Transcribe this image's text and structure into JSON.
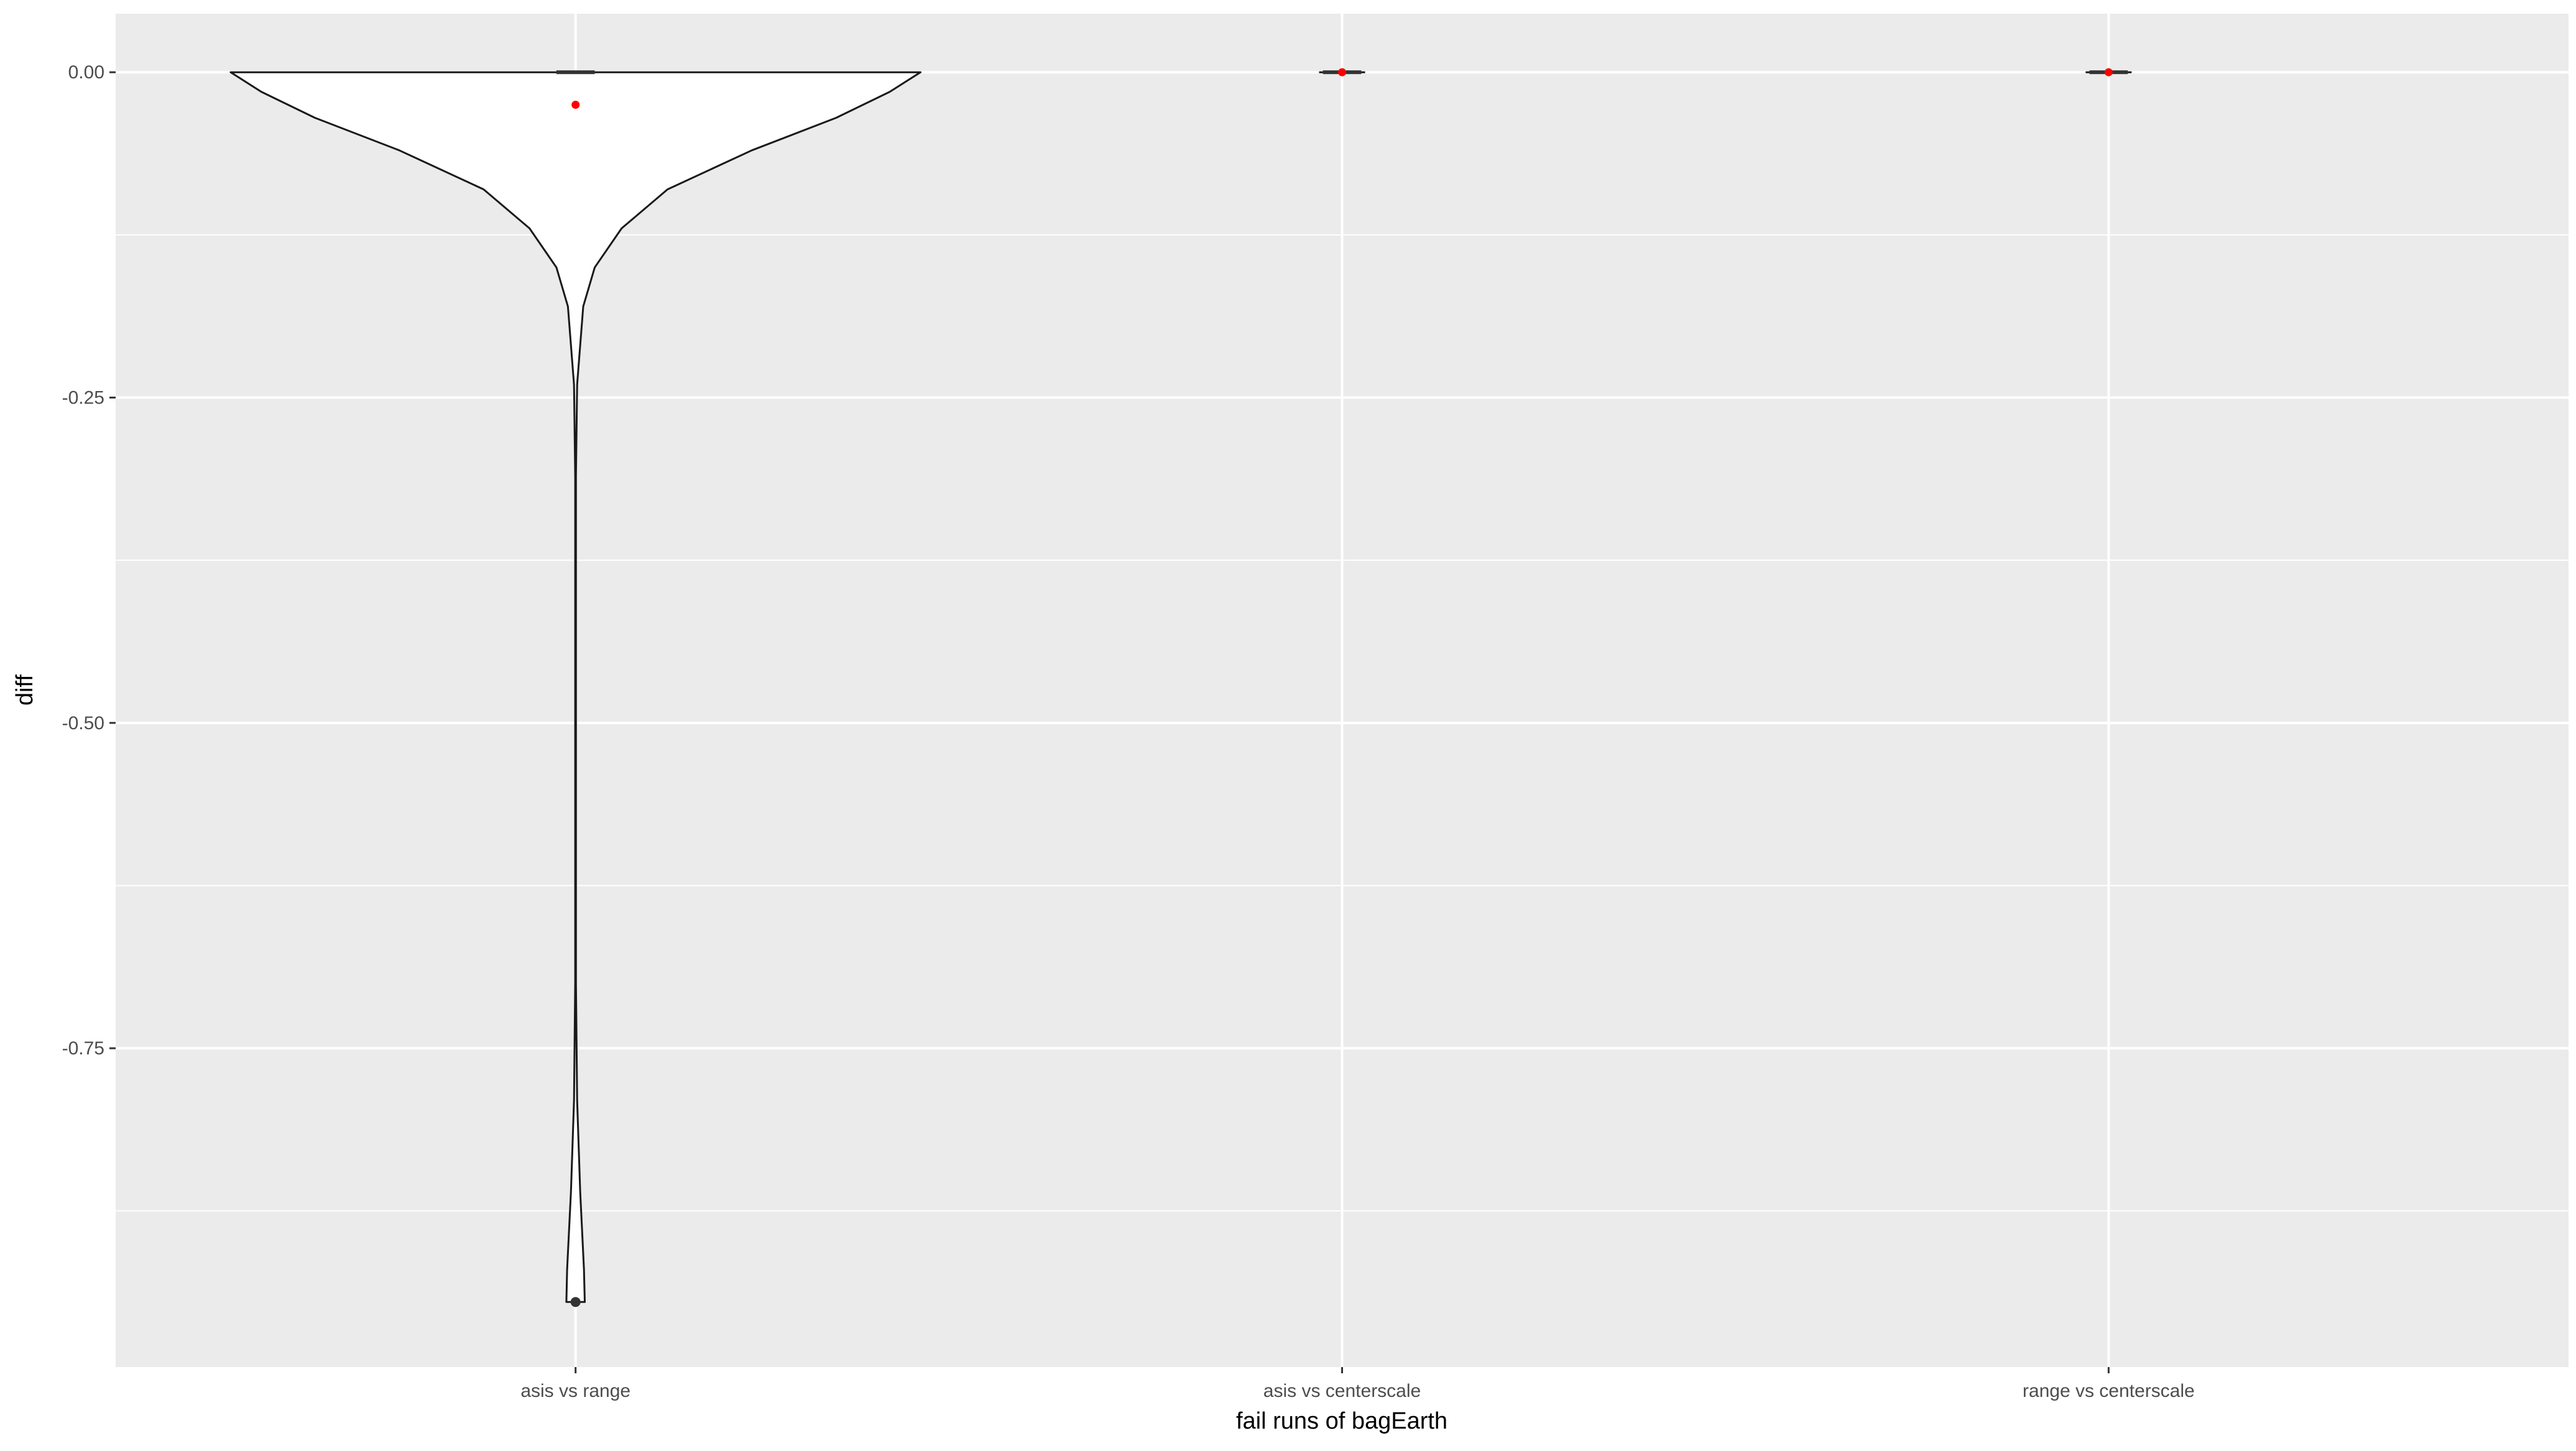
{
  "chart_data": {
    "type": "violin",
    "title": "",
    "xlabel": "fail runs of bagEarth",
    "ylabel": "diff",
    "categories": [
      "asis vs range",
      "asis vs centerscale",
      "range vs centerscale"
    ],
    "ylim": [
      -0.995,
      0.045
    ],
    "yticks": [
      0.0,
      -0.25,
      -0.5,
      -0.75
    ],
    "ytick_labels": [
      "0.00",
      "-0.25",
      "-0.50",
      "-0.75"
    ],
    "grid": true,
    "legend": "none",
    "series": [
      {
        "category": "asis vs range",
        "density_profile": [
          {
            "y": 0.0,
            "half_width": 0.45
          },
          {
            "y": -0.015,
            "half_width": 0.41
          },
          {
            "y": -0.035,
            "half_width": 0.34
          },
          {
            "y": -0.06,
            "half_width": 0.23
          },
          {
            "y": -0.09,
            "half_width": 0.12
          },
          {
            "y": -0.12,
            "half_width": 0.06
          },
          {
            "y": -0.15,
            "half_width": 0.025
          },
          {
            "y": -0.18,
            "half_width": 0.01
          },
          {
            "y": -0.24,
            "half_width": 0.002
          },
          {
            "y": -0.31,
            "half_width": 0.0005
          },
          {
            "y": -0.7,
            "half_width": 0.0005
          },
          {
            "y": -0.79,
            "half_width": 0.002
          },
          {
            "y": -0.86,
            "half_width": 0.006
          },
          {
            "y": -0.92,
            "half_width": 0.011
          },
          {
            "y": -0.945,
            "half_width": 0.012
          }
        ],
        "box": {
          "q1": 0.0,
          "median": 0.0,
          "q3": 0.0
        },
        "mean": -0.025,
        "outliers": [
          -0.945
        ]
      },
      {
        "category": "asis vs centerscale",
        "density_profile": [
          {
            "y": 0.0,
            "half_width": 0.03
          }
        ],
        "box": {
          "q1": 0.0,
          "median": 0.0,
          "q3": 0.0
        },
        "mean": 0.0,
        "outliers": []
      },
      {
        "category": "range vs centerscale",
        "density_profile": [
          {
            "y": 0.0,
            "half_width": 0.03
          }
        ],
        "box": {
          "q1": 0.0,
          "median": 0.0,
          "q3": 0.0
        },
        "mean": 0.0,
        "outliers": []
      }
    ],
    "colors": {
      "panel": "#ebebeb",
      "grid": "#ffffff",
      "violin_fill": "#ffffff",
      "violin_stroke": "#1a1a1a",
      "box": "#333333",
      "mean_point": "#ff0000",
      "outlier": "#333333"
    }
  }
}
